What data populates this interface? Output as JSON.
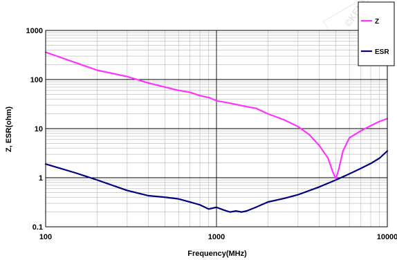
{
  "chart_data": {
    "type": "line",
    "xlabel": "Frequency(MHz)",
    "ylabel": "Z, ESR(ohm)",
    "x_scale": "log",
    "y_scale": "log",
    "xlim": [
      100,
      10000
    ],
    "ylim": [
      0.1,
      1000
    ],
    "x_ticks": [
      "100",
      "1000",
      "10000"
    ],
    "y_ticks": [
      "0.1",
      "1",
      "10",
      "100",
      "1000"
    ],
    "grid": true,
    "legend_position": "top-right",
    "series": [
      {
        "name": "Z",
        "color": "#ff33ff",
        "points": [
          [
            100,
            360
          ],
          [
            150,
            220
          ],
          [
            200,
            155
          ],
          [
            300,
            115
          ],
          [
            400,
            85
          ],
          [
            500,
            70
          ],
          [
            600,
            60
          ],
          [
            700,
            55
          ],
          [
            800,
            47
          ],
          [
            900,
            43
          ],
          [
            1000,
            37
          ],
          [
            1200,
            33
          ],
          [
            1500,
            28
          ],
          [
            1700,
            26
          ],
          [
            2000,
            20
          ],
          [
            2500,
            15
          ],
          [
            3000,
            11
          ],
          [
            3500,
            7.5
          ],
          [
            4000,
            4.5
          ],
          [
            4500,
            2.5
          ],
          [
            4800,
            1.3
          ],
          [
            5000,
            0.95
          ],
          [
            5200,
            1.5
          ],
          [
            5500,
            3.5
          ],
          [
            6000,
            6.5
          ],
          [
            7000,
            9
          ],
          [
            8000,
            11.5
          ],
          [
            9000,
            14
          ],
          [
            10000,
            16
          ]
        ]
      },
      {
        "name": "ESR",
        "color": "#000080",
        "points": [
          [
            100,
            1.9
          ],
          [
            150,
            1.25
          ],
          [
            200,
            0.9
          ],
          [
            300,
            0.55
          ],
          [
            400,
            0.43
          ],
          [
            500,
            0.4
          ],
          [
            600,
            0.37
          ],
          [
            700,
            0.32
          ],
          [
            800,
            0.28
          ],
          [
            900,
            0.23
          ],
          [
            1000,
            0.25
          ],
          [
            1100,
            0.22
          ],
          [
            1200,
            0.2
          ],
          [
            1300,
            0.21
          ],
          [
            1400,
            0.2
          ],
          [
            1500,
            0.21
          ],
          [
            1700,
            0.25
          ],
          [
            2000,
            0.32
          ],
          [
            2500,
            0.38
          ],
          [
            3000,
            0.45
          ],
          [
            4000,
            0.65
          ],
          [
            5000,
            0.9
          ],
          [
            6000,
            1.2
          ],
          [
            7000,
            1.55
          ],
          [
            8000,
            1.95
          ],
          [
            9000,
            2.5
          ],
          [
            10000,
            3.5
          ]
        ]
      }
    ]
  }
}
